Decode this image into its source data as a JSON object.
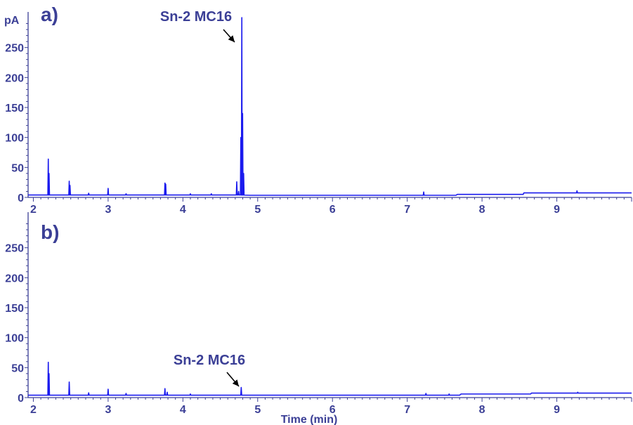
{
  "colors": {
    "axis": "#3b3f96",
    "trace": "#1a1aee",
    "text": "#3b3f96"
  },
  "chart_data": [
    {
      "type": "line",
      "panel_label": "a)",
      "ylabel": "pA",
      "xlim": [
        1.93,
        10.0
      ],
      "ylim": [
        0,
        300
      ],
      "yticks": [
        0,
        50,
        100,
        150,
        200,
        250
      ],
      "xticks": [
        2,
        3,
        4,
        5,
        6,
        7,
        8,
        9
      ],
      "baseline": [
        [
          1.93,
          4
        ],
        [
          4.7,
          4
        ],
        [
          4.76,
          4
        ],
        [
          4.9,
          3.5
        ],
        [
          7.2,
          3.5
        ],
        [
          7.65,
          3.5
        ],
        [
          7.67,
          5
        ],
        [
          8.55,
          5
        ],
        [
          8.56,
          7.5
        ],
        [
          10.0,
          7.5
        ]
      ],
      "peaks": [
        {
          "x": 2.2,
          "y": 64
        },
        {
          "x": 2.21,
          "y": 40
        },
        {
          "x": 2.48,
          "y": 27
        },
        {
          "x": 2.49,
          "y": 20
        },
        {
          "x": 2.74,
          "y": 7
        },
        {
          "x": 3.0,
          "y": 15
        },
        {
          "x": 3.24,
          "y": 6
        },
        {
          "x": 3.76,
          "y": 24
        },
        {
          "x": 3.77,
          "y": 22
        },
        {
          "x": 4.1,
          "y": 6
        },
        {
          "x": 4.38,
          "y": 6
        },
        {
          "x": 4.72,
          "y": 26
        },
        {
          "x": 4.745,
          "y": 10
        },
        {
          "x": 4.775,
          "y": 100
        },
        {
          "x": 4.788,
          "y": 300
        },
        {
          "x": 4.798,
          "y": 140
        },
        {
          "x": 4.812,
          "y": 40
        },
        {
          "x": 7.22,
          "y": 9
        },
        {
          "x": 9.27,
          "y": 11
        }
      ],
      "annotation": {
        "text": "Sn-2 MC16",
        "x": 4.788,
        "y": 300
      }
    },
    {
      "type": "line",
      "panel_label": "b)",
      "xlabel": "Time (min)",
      "xlim": [
        1.93,
        10.0
      ],
      "ylim": [
        0,
        300
      ],
      "yticks": [
        0,
        50,
        100,
        150,
        200,
        250
      ],
      "xticks": [
        2,
        3,
        4,
        5,
        6,
        7,
        8,
        9
      ],
      "baseline": [
        [
          1.93,
          4
        ],
        [
          7.7,
          4
        ],
        [
          7.72,
          6
        ],
        [
          8.65,
          6
        ],
        [
          8.66,
          7.5
        ],
        [
          10.0,
          7.5
        ]
      ],
      "peaks": [
        {
          "x": 2.2,
          "y": 59
        },
        {
          "x": 2.21,
          "y": 40
        },
        {
          "x": 2.48,
          "y": 26
        },
        {
          "x": 2.74,
          "y": 8
        },
        {
          "x": 3.0,
          "y": 14
        },
        {
          "x": 3.24,
          "y": 7
        },
        {
          "x": 3.76,
          "y": 15
        },
        {
          "x": 3.79,
          "y": 9
        },
        {
          "x": 4.1,
          "y": 6
        },
        {
          "x": 4.78,
          "y": 17
        },
        {
          "x": 7.25,
          "y": 7
        },
        {
          "x": 7.56,
          "y": 6
        },
        {
          "x": 9.28,
          "y": 9
        }
      ],
      "annotation": {
        "text": "Sn-2 MC16",
        "x": 4.78,
        "y": 17
      }
    }
  ]
}
